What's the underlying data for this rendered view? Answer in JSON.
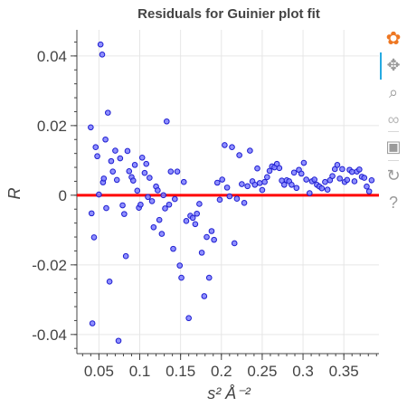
{
  "chart_data": {
    "type": "scatter",
    "title": "Residuals for Guinier plot fit",
    "xlabel": "s² Å⁻²",
    "ylabel": "R",
    "xlim": [
      0.023,
      0.393
    ],
    "ylim": [
      -0.0455,
      0.0475
    ],
    "x_ticks": [
      0.05,
      0.1,
      0.15,
      0.2,
      0.25,
      0.3,
      0.35
    ],
    "x_tick_labels": [
      "0.05",
      "0.1",
      "0.15",
      "0.2",
      "0.25",
      "0.3",
      "0.35"
    ],
    "y_ticks": [
      0.04,
      0.02,
      0,
      -0.02,
      -0.04
    ],
    "y_tick_labels": [
      "0.04",
      "0.02",
      "0",
      "-0.02",
      "-0.04"
    ],
    "grid": true,
    "reference_line": {
      "y": 0,
      "color": "#ff0000"
    },
    "marker": {
      "fill": "#7b7bff",
      "stroke": "#1e1ed0"
    },
    "points": [
      [
        0.04,
        0.0195
      ],
      [
        0.041,
        -0.0052
      ],
      [
        0.042,
        -0.0368
      ],
      [
        0.044,
        -0.0121
      ],
      [
        0.046,
        0.0138
      ],
      [
        0.048,
        0.0112
      ],
      [
        0.05,
        0.0002
      ],
      [
        0.052,
        0.0433
      ],
      [
        0.054,
        0.0404
      ],
      [
        0.055,
        0.0037
      ],
      [
        0.056,
        0.0048
      ],
      [
        0.058,
        0.016
      ],
      [
        0.059,
        -0.0037
      ],
      [
        0.061,
        0.0237
      ],
      [
        0.063,
        -0.0248
      ],
      [
        0.065,
        0.0098
      ],
      [
        0.067,
        0.0068
      ],
      [
        0.07,
        0.0128
      ],
      [
        0.072,
        0.0044
      ],
      [
        0.074,
        -0.0418
      ],
      [
        0.076,
        0.0106
      ],
      [
        0.079,
        -0.0029
      ],
      [
        0.081,
        -0.0054
      ],
      [
        0.083,
        -0.0175
      ],
      [
        0.085,
        0.0127
      ],
      [
        0.087,
        0.0069
      ],
      [
        0.09,
        0.0052
      ],
      [
        0.092,
        0.0042
      ],
      [
        0.094,
        0.0087
      ],
      [
        0.097,
        0.0013
      ],
      [
        0.099,
        -0.0036
      ],
      [
        0.101,
        -0.0027
      ],
      [
        0.103,
        0.0108
      ],
      [
        0.106,
        0.0064
      ],
      [
        0.108,
        0.009
      ],
      [
        0.11,
        -0.0005
      ],
      [
        0.112,
        0.005
      ],
      [
        0.115,
        -0.0017
      ],
      [
        0.117,
        -0.0092
      ],
      [
        0.12,
        0.0025
      ],
      [
        0.122,
        0.0014
      ],
      [
        0.124,
        -0.0071
      ],
      [
        0.127,
        -0.0111
      ],
      [
        0.129,
        0.0
      ],
      [
        0.131,
        -0.0038
      ],
      [
        0.133,
        0.0212
      ],
      [
        0.136,
        -0.0027
      ],
      [
        0.138,
        0.0068
      ],
      [
        0.141,
        -0.0154
      ],
      [
        0.143,
        -0.0011
      ],
      [
        0.146,
        0.0068
      ],
      [
        0.149,
        -0.0202
      ],
      [
        0.151,
        -0.0237
      ],
      [
        0.154,
        0.0038
      ],
      [
        0.157,
        -0.0074
      ],
      [
        0.16,
        -0.0353
      ],
      [
        0.162,
        -0.0059
      ],
      [
        0.165,
        -0.0065
      ],
      [
        0.168,
        -0.0083
      ],
      [
        0.17,
        -0.0053
      ],
      [
        0.173,
        -0.0025
      ],
      [
        0.176,
        -0.0165
      ],
      [
        0.179,
        -0.029
      ],
      [
        0.182,
        -0.012
      ],
      [
        0.185,
        -0.0237
      ],
      [
        0.188,
        -0.0103
      ],
      [
        0.191,
        -0.0128
      ],
      [
        0.195,
        0.0036
      ],
      [
        0.198,
        -0.0013
      ],
      [
        0.201,
        0.0045
      ],
      [
        0.204,
        0.0144
      ],
      [
        0.207,
        0.0022
      ],
      [
        0.21,
        -0.0003
      ],
      [
        0.213,
        0.0138
      ],
      [
        0.216,
        -0.0138
      ],
      [
        0.219,
        -0.001
      ],
      [
        0.222,
        0.0115
      ],
      [
        0.225,
        0.0032
      ],
      [
        0.228,
        -0.0022
      ],
      [
        0.232,
        0.0026
      ],
      [
        0.235,
        0.0128
      ],
      [
        0.238,
        0.004
      ],
      [
        0.241,
        0.003
      ],
      [
        0.244,
        0.0077
      ],
      [
        0.247,
        0.0035
      ],
      [
        0.25,
        0.0015
      ],
      [
        0.253,
        0.0038
      ],
      [
        0.256,
        0.0052
      ],
      [
        0.259,
        0.007
      ],
      [
        0.262,
        0.0083
      ],
      [
        0.265,
        0.008
      ],
      [
        0.268,
        0.009
      ],
      [
        0.271,
        0.0078
      ],
      [
        0.274,
        0.0042
      ],
      [
        0.277,
        0.003
      ],
      [
        0.28,
        0.0043
      ],
      [
        0.283,
        0.004
      ],
      [
        0.286,
        0.003
      ],
      [
        0.289,
        0.0065
      ],
      [
        0.292,
        0.0021
      ],
      [
        0.295,
        0.0073
      ],
      [
        0.298,
        0.0062
      ],
      [
        0.301,
        0.0093
      ],
      [
        0.304,
        0.0045
      ],
      [
        0.308,
        0.0006
      ],
      [
        0.311,
        0.004
      ],
      [
        0.314,
        0.0045
      ],
      [
        0.317,
        0.003
      ],
      [
        0.32,
        0.0025
      ],
      [
        0.323,
        0.002
      ],
      [
        0.327,
        0.0038
      ],
      [
        0.33,
        0.0016
      ],
      [
        0.333,
        0.0043
      ],
      [
        0.336,
        0.0055
      ],
      [
        0.339,
        0.0075
      ],
      [
        0.342,
        0.0087
      ],
      [
        0.345,
        0.0048
      ],
      [
        0.348,
        0.0075
      ],
      [
        0.351,
        0.0038
      ],
      [
        0.354,
        0.0044
      ],
      [
        0.357,
        0.0073
      ],
      [
        0.36,
        0.0067
      ],
      [
        0.363,
        0.004
      ],
      [
        0.366,
        0.0068
      ],
      [
        0.369,
        0.0074
      ],
      [
        0.372,
        0.0053
      ],
      [
        0.375,
        0.005
      ],
      [
        0.378,
        0.0025
      ],
      [
        0.381,
        0.0011
      ],
      [
        0.384,
        0.0043
      ]
    ]
  },
  "toolbar": {
    "tools": [
      {
        "icon": "bokeh-logo-icon",
        "glyph": "✿",
        "color": "#ee7722"
      },
      {
        "icon": "pan-icon",
        "glyph": "✥",
        "color": "#9a9a9a"
      },
      {
        "icon": "box-zoom-icon",
        "glyph": "⌕",
        "color": "#9a9a9a"
      },
      {
        "icon": "wheel-zoom-icon",
        "glyph": "∞",
        "color": "#bbbbbb"
      },
      {
        "icon": "save-icon",
        "glyph": "▣",
        "color": "#9a9a9a"
      },
      {
        "icon": "reset-icon",
        "glyph": "↻",
        "color": "#9a9a9a"
      },
      {
        "icon": "help-icon",
        "glyph": "?",
        "color": "#9a9a9a"
      }
    ]
  }
}
